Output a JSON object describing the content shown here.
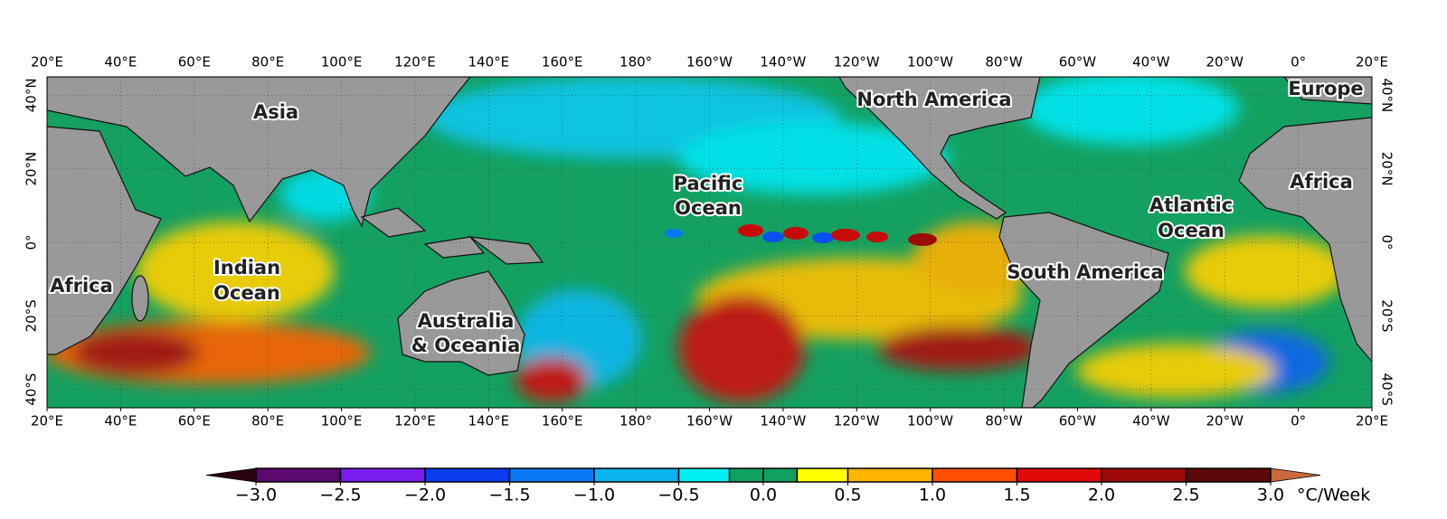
{
  "map": {
    "xlim": [
      20,
      380
    ],
    "ylim": [
      -45,
      45
    ],
    "lon_ticks": [
      {
        "value": 20,
        "label": "20°E"
      },
      {
        "value": 40,
        "label": "40°E"
      },
      {
        "value": 60,
        "label": "60°E"
      },
      {
        "value": 80,
        "label": "80°E"
      },
      {
        "value": 100,
        "label": "100°E"
      },
      {
        "value": 120,
        "label": "120°E"
      },
      {
        "value": 140,
        "label": "140°E"
      },
      {
        "value": 160,
        "label": "160°E"
      },
      {
        "value": 180,
        "label": "180°"
      },
      {
        "value": 200,
        "label": "160°W"
      },
      {
        "value": 220,
        "label": "140°W"
      },
      {
        "value": 240,
        "label": "120°W"
      },
      {
        "value": 260,
        "label": "100°W"
      },
      {
        "value": 280,
        "label": "80°W"
      },
      {
        "value": 300,
        "label": "60°W"
      },
      {
        "value": 320,
        "label": "40°W"
      },
      {
        "value": 340,
        "label": "20°W"
      },
      {
        "value": 360,
        "label": "0°"
      },
      {
        "value": 380,
        "label": "20°E"
      }
    ],
    "lat_ticks": [
      {
        "value": 40,
        "label": "40°N"
      },
      {
        "value": 20,
        "label": "20°N"
      },
      {
        "value": 0,
        "label": "0°"
      },
      {
        "value": -20,
        "label": "20°S"
      },
      {
        "value": -40,
        "label": "40°S"
      }
    ],
    "grid": true,
    "regions": [
      {
        "lines": [
          "Asia"
        ]
      },
      {
        "lines": [
          "North America"
        ]
      },
      {
        "lines": [
          "Europe"
        ]
      },
      {
        "lines": [
          "Pacific",
          "Ocean"
        ]
      },
      {
        "lines": [
          "Africa"
        ]
      },
      {
        "lines": [
          "Atlantic",
          "Ocean"
        ]
      },
      {
        "lines": [
          "Africa"
        ]
      },
      {
        "lines": [
          "Indian",
          "Ocean"
        ]
      },
      {
        "lines": [
          "South America"
        ]
      },
      {
        "lines": [
          "Australia",
          "& Oceania"
        ]
      }
    ]
  },
  "colorbar": {
    "lim": [
      -3,
      3
    ],
    "bounds": [
      -3,
      -2.5,
      -2,
      -1.5,
      -1,
      -0.5,
      -0.2,
      0,
      0.2,
      0.5,
      1,
      1.5,
      2,
      2.5,
      3
    ],
    "colors": [
      "#5a0a6e",
      "#7a1cf0",
      "#0a3cf0",
      "#0a78f5",
      "#0ab4f0",
      "#00f0f5",
      "#10a060",
      "#10a060",
      "#ffff00",
      "#ffb400",
      "#ff5000",
      "#e00a0a",
      "#9e0a0a",
      "#5a0a0a"
    ],
    "under_color": "#2a0010",
    "over_color": "#c86a3c",
    "ticks": [
      {
        "value": -3,
        "label": "−3.0"
      },
      {
        "value": -2.5,
        "label": "−2.5"
      },
      {
        "value": -2,
        "label": "−2.0"
      },
      {
        "value": -1.5,
        "label": "−1.5"
      },
      {
        "value": -1,
        "label": "−1.0"
      },
      {
        "value": -0.5,
        "label": "−0.5"
      },
      {
        "value": 0,
        "label": "0.0"
      },
      {
        "value": 0.5,
        "label": "0.5"
      },
      {
        "value": 1,
        "label": "1.0"
      },
      {
        "value": 1.5,
        "label": "1.5"
      },
      {
        "value": 2,
        "label": "2.0"
      },
      {
        "value": 2.5,
        "label": "2.5"
      },
      {
        "value": 3,
        "label": "3.0"
      }
    ],
    "unit": "°C/Week"
  }
}
